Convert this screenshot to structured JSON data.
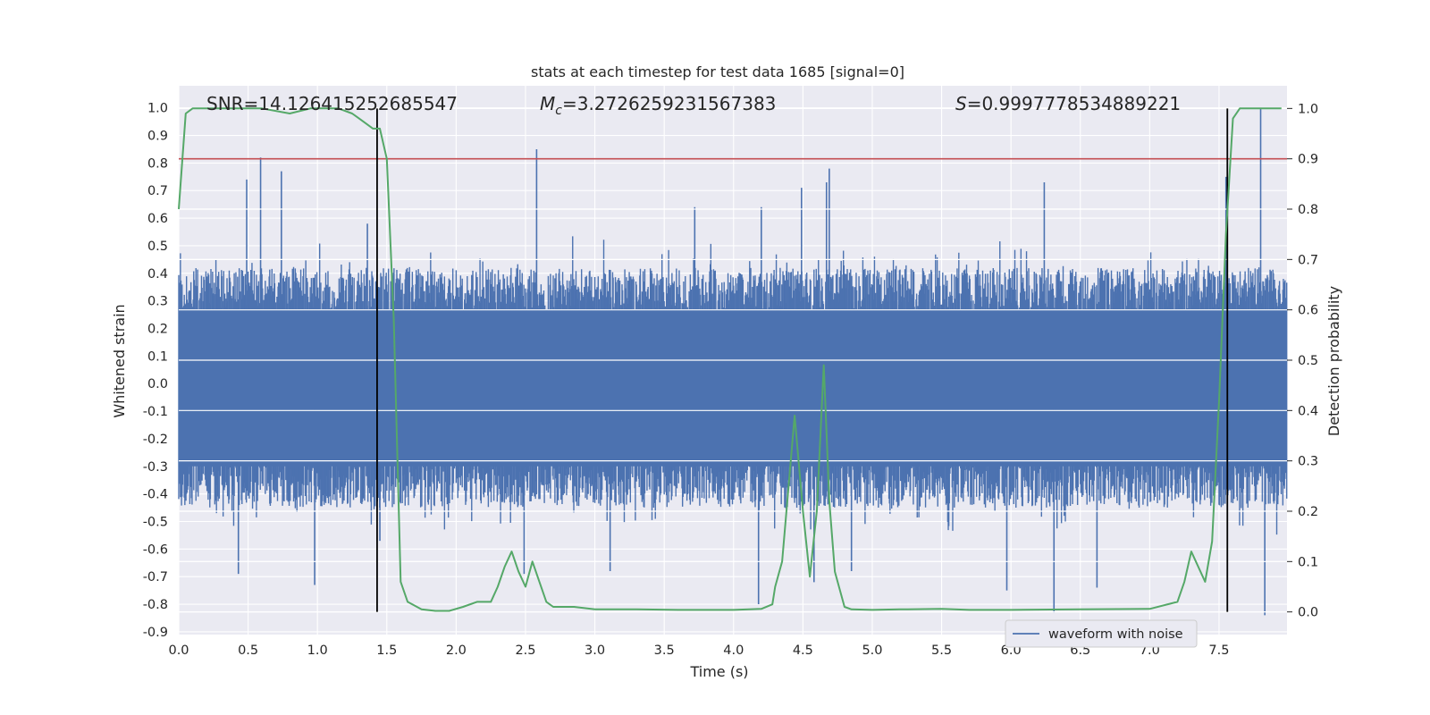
{
  "chart_data": {
    "type": "line",
    "title": "stats at each timestep for test data 1685 [signal=0]",
    "xlabel": "Time (s)",
    "ylabel": "Whitened strain",
    "y2label": "Detection probability",
    "xlim": [
      0.0,
      7.99
    ],
    "ylim": [
      -0.91,
      1.08
    ],
    "y2lim": [
      -0.045,
      1.045
    ],
    "xticks": [
      "0.0",
      "0.5",
      "1.0",
      "1.5",
      "2.0",
      "2.5",
      "3.0",
      "3.5",
      "4.0",
      "4.5",
      "5.0",
      "5.5",
      "6.0",
      "6.5",
      "7.0",
      "7.5"
    ],
    "yticks": [
      "1.0",
      "0.9",
      "0.8",
      "0.7",
      "0.6",
      "0.5",
      "0.4",
      "0.3",
      "0.2",
      "0.1",
      "0.0",
      "-0.1",
      "-0.2",
      "-0.3",
      "-0.4",
      "-0.5",
      "-0.6",
      "-0.7",
      "-0.8",
      "-0.9"
    ],
    "y2ticks": [
      "1.0",
      "0.9",
      "0.8",
      "0.7",
      "0.6",
      "0.5",
      "0.4",
      "0.3",
      "0.2",
      "0.1",
      "0.0"
    ],
    "grid": true,
    "legend": {
      "position": "lower-right",
      "entries": [
        "waveform with noise"
      ]
    },
    "annotations": {
      "snr": "SNR=14.126415252685547",
      "mc_symbol": "M",
      "mc_sub": "c",
      "mc_value": "=3.2726259231567383",
      "s_symbol": "S",
      "s_value": "=0.9997778534889221"
    },
    "threshold": {
      "axis": "y2",
      "value": 0.9
    },
    "vlines_x": [
      1.43,
      7.56
    ],
    "colors": {
      "waveform": "#4c72b0",
      "probability": "#55a868",
      "threshold": "#c44e52",
      "vlines": "#000000",
      "background": "#eaeaf2",
      "grid": "#ffffff"
    },
    "waveform": {
      "envelope_pos": 0.42,
      "envelope_neg": -0.45,
      "peaks": [
        [
          0.49,
          0.74
        ],
        [
          0.59,
          0.82
        ],
        [
          0.74,
          0.77
        ],
        [
          1.36,
          0.58
        ],
        [
          2.58,
          0.85
        ],
        [
          3.72,
          0.64
        ],
        [
          4.49,
          0.71
        ],
        [
          4.69,
          0.78
        ],
        [
          4.67,
          0.73
        ],
        [
          6.24,
          0.73
        ],
        [
          7.8,
          1.0
        ],
        [
          7.55,
          0.75
        ],
        [
          4.2,
          0.64
        ],
        [
          0.98,
          -0.73
        ],
        [
          1.45,
          -0.57
        ],
        [
          2.49,
          -0.69
        ],
        [
          3.11,
          -0.68
        ],
        [
          4.18,
          -0.8
        ],
        [
          4.58,
          -0.72
        ],
        [
          5.97,
          -0.75
        ],
        [
          6.31,
          -0.83
        ],
        [
          7.83,
          -0.84
        ],
        [
          4.85,
          -0.68
        ],
        [
          0.43,
          -0.69
        ],
        [
          6.62,
          -0.74
        ]
      ]
    },
    "probability": {
      "x": [
        0.0,
        0.05,
        0.1,
        0.2,
        0.4,
        0.6,
        0.8,
        0.95,
        1.05,
        1.15,
        1.25,
        1.3,
        1.35,
        1.4,
        1.45,
        1.5,
        1.55,
        1.6,
        1.65,
        1.75,
        1.85,
        1.95,
        2.05,
        2.15,
        2.2,
        2.25,
        2.3,
        2.35,
        2.4,
        2.45,
        2.5,
        2.55,
        2.6,
        2.65,
        2.7,
        2.75,
        2.8,
        2.85,
        3.0,
        3.3,
        3.6,
        4.0,
        4.2,
        4.28,
        4.3,
        4.35,
        4.44,
        4.5,
        4.55,
        4.6,
        4.65,
        4.69,
        4.73,
        4.8,
        4.85,
        5.0,
        5.2,
        5.5,
        5.7,
        6.0,
        6.5,
        7.0,
        7.2,
        7.25,
        7.3,
        7.4,
        7.45,
        7.5,
        7.55,
        7.6,
        7.65,
        7.7,
        7.8,
        7.9,
        7.95
      ],
      "y": [
        0.8,
        0.99,
        1.0,
        1.0,
        1.0,
        1.0,
        0.99,
        1.0,
        1.0,
        1.0,
        0.99,
        0.98,
        0.97,
        0.96,
        0.96,
        0.9,
        0.58,
        0.06,
        0.02,
        0.005,
        0.002,
        0.002,
        0.01,
        0.02,
        0.02,
        0.02,
        0.05,
        0.09,
        0.12,
        0.08,
        0.05,
        0.1,
        0.06,
        0.02,
        0.01,
        0.01,
        0.01,
        0.01,
        0.005,
        0.005,
        0.004,
        0.004,
        0.006,
        0.015,
        0.05,
        0.1,
        0.39,
        0.2,
        0.07,
        0.2,
        0.49,
        0.22,
        0.08,
        0.01,
        0.005,
        0.004,
        0.005,
        0.006,
        0.004,
        0.004,
        0.005,
        0.006,
        0.02,
        0.06,
        0.12,
        0.06,
        0.14,
        0.42,
        0.75,
        0.98,
        1.0,
        1.0,
        1.0,
        1.0,
        1.0
      ]
    }
  }
}
